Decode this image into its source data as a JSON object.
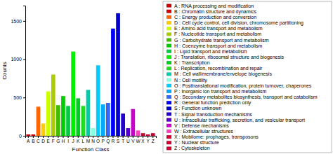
{
  "chart_data": {
    "type": "bar",
    "categories": [
      "A",
      "B",
      "C",
      "D",
      "E",
      "F",
      "G",
      "H",
      "I",
      "J",
      "K",
      "L",
      "M",
      "N",
      "O",
      "P",
      "Q",
      "R",
      "S",
      "T",
      "U",
      "V",
      "W",
      "X",
      "Y",
      "Z"
    ],
    "values": [
      18,
      18,
      380,
      160,
      580,
      800,
      400,
      520,
      390,
      1100,
      490,
      390,
      600,
      100,
      920,
      410,
      430,
      1400,
      1600,
      290,
      100,
      350,
      70,
      35,
      18,
      35
    ],
    "colors": [
      "#cc0000",
      "#cc0000",
      "#ff6600",
      "#ffcc00",
      "#ccff00",
      "#aacc00",
      "#44bb00",
      "#00cc00",
      "#00cc44",
      "#00ee00",
      "#00cc22",
      "#22dd22",
      "#00ccaa",
      "#88ffdd",
      "#00ccff",
      "#00aaff",
      "#3366ff",
      "#0000ff",
      "#0000cc",
      "#2200cc",
      "#5500cc",
      "#cc00cc",
      "#ff44bb",
      "#cc0033",
      "#cc0033",
      "#cc0033"
    ],
    "xlabel": "Function Class",
    "ylabel": "Counts",
    "ylim": [
      0,
      1700
    ],
    "yticks": [
      0,
      500,
      1000,
      1500
    ],
    "grid": false,
    "legend": "right",
    "legend_labels": [
      "A :  RNA processing and modification",
      "B :  Chromatin structure and dynamics",
      "C :  Energy production and conversion",
      "D :  Cell cycle control, cell division, chromosome partitioning",
      "E :  Amino acid transport and metabolism",
      "F :  Nucleotide transport and metabolism",
      "G :  Carbohydrate transport and metabolism",
      "H :  Coenzyme transport and metabolism",
      "I :  Lipid transport and metabolism",
      "J :  Translation, ribosomal structure and biogenesis",
      "K :  Transcription",
      "L :  Replication, recombination and repair",
      "M :  Cell wall/membrane/envelope biogenesis",
      "N :  Cell motility",
      "O :  Posttranslational modification, protein turnover, chaperones",
      "P :  Inorganic ion transport and metabolism",
      "Q :  Secondary metabolites biosynthesis, transport and catabolism",
      "R :  General function prediction only",
      "S :  Function unknown",
      "T :  Signal transduction mechanisms",
      "U :  Intracellular trafficking, secretion, and vesicular transport",
      "V :  Defense mechanisms",
      "W :  Extracellular structures",
      "X :  Mobilome: prophages, transposons",
      "Y :  Nuclear structure",
      "Z :  Cytoskeleton"
    ]
  }
}
